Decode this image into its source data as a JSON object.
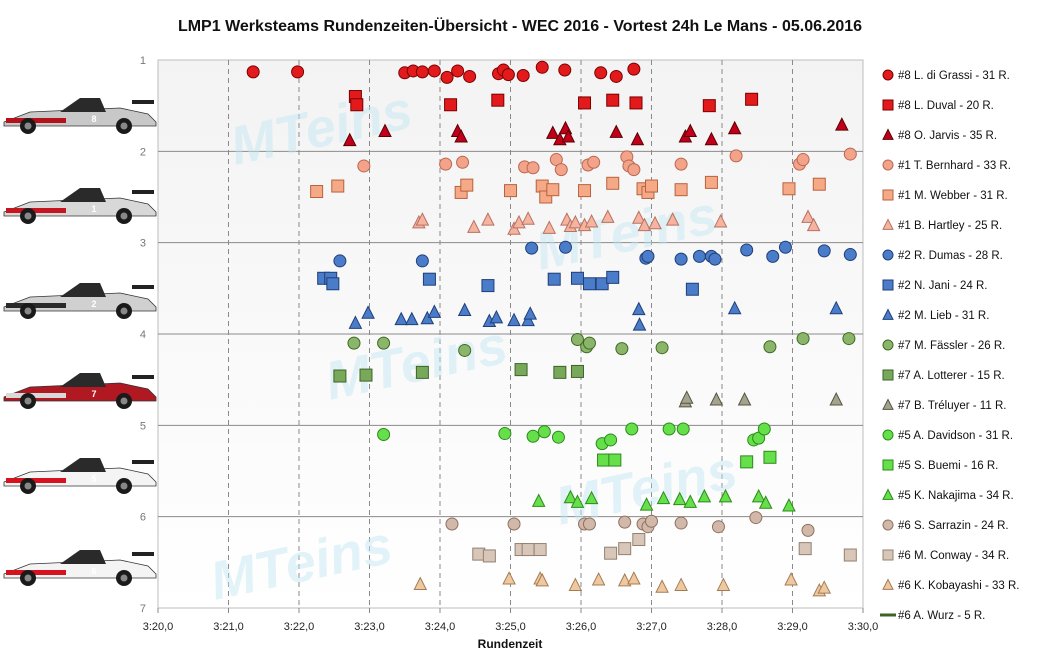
{
  "chart_data": {
    "type": "scatter",
    "title": "LMP1  Werksteams  Rundenzeiten-Übersicht  - WEC 2016  - Vortest 24h  Le Mans  - 05.06.2016",
    "xlabel": "Rundenzeit",
    "ylabel": "",
    "x_ticks": [
      "3:20,0",
      "3:21,0",
      "3:22,0",
      "3:23,0",
      "3:24,0",
      "3:25,0",
      "3:26,0",
      "3:27,0",
      "3:28,0",
      "3:29,0",
      "3:30,0"
    ],
    "xlim": [
      200,
      210
    ],
    "y_ticks": [
      "1",
      "2",
      "3",
      "4",
      "5",
      "6",
      "7"
    ],
    "ylim": [
      1,
      7
    ],
    "y_inverted": true,
    "grid": true,
    "legend_position": "right",
    "watermark": "MTeins",
    "series": [
      {
        "name": "#8 L. di Grassi - 31 R.",
        "marker": "circle",
        "color": "#e31a1c",
        "stroke": "#7a0000",
        "y": 1.13,
        "x": [
          201.35,
          201.98,
          203.5,
          203.62,
          203.75,
          203.92,
          204.1,
          204.25,
          204.42,
          204.83,
          204.9,
          204.97,
          205.18,
          205.45,
          205.77,
          206.28,
          206.5,
          206.75
        ],
        "yoff": [
          0,
          0,
          0.01,
          -0.01,
          0,
          -0.01,
          0.06,
          -0.01,
          0.05,
          0.02,
          -0.02,
          0.03,
          0.04,
          -0.05,
          -0.02,
          0.01,
          0.05,
          -0.03
        ]
      },
      {
        "name": "#8 L. Duval - 20 R.",
        "marker": "square",
        "color": "#e31a1c",
        "stroke": "#7a0000",
        "y": 1.42,
        "x": [
          202.8,
          202.82,
          204.15,
          204.82,
          206.05,
          206.45,
          206.78,
          207.82,
          208.42
        ],
        "yoff": [
          -0.02,
          0.07,
          0.07,
          0.02,
          0.05,
          0.02,
          0.05,
          0.08,
          0.01
        ]
      },
      {
        "name": "#8 O. Jarvis - 35 R.",
        "marker": "triangle",
        "color": "#c0001b",
        "stroke": "#5c0000",
        "y": 1.8,
        "x": [
          202.72,
          203.22,
          204.25,
          204.3,
          205.6,
          205.7,
          205.78,
          205.82,
          206.5,
          206.8,
          207.48,
          207.55,
          207.85,
          208.18,
          209.7
        ],
        "yoff": [
          0.08,
          -0.02,
          -0.02,
          0.04,
          0.0,
          0.07,
          -0.05,
          0.04,
          -0.01,
          0.07,
          0.04,
          -0.02,
          0.07,
          -0.05,
          -0.09
        ]
      },
      {
        "name": "#1 T. Bernhard - 33 R.",
        "marker": "circle",
        "color": "#f2a38a",
        "stroke": "#b9684f",
        "y": 2.14,
        "x": [
          202.92,
          204.08,
          204.32,
          205.2,
          205.32,
          205.65,
          205.72,
          206.1,
          206.18,
          206.65,
          206.68,
          206.75,
          207.42,
          208.2,
          209.1,
          209.15,
          209.82
        ],
        "yoff": [
          0.02,
          0.0,
          -0.02,
          0.03,
          0.04,
          -0.05,
          0.06,
          0.01,
          -0.02,
          -0.08,
          0.02,
          0.06,
          0.0,
          -0.09,
          0.0,
          -0.05,
          -0.11
        ]
      },
      {
        "name": "#1 M. Webber - 31 R.",
        "marker": "square",
        "color": "#f5a986",
        "stroke": "#b8633d",
        "y": 2.4,
        "x": [
          202.25,
          202.55,
          204.3,
          204.38,
          205.0,
          205.45,
          205.5,
          205.6,
          206.05,
          206.45,
          206.88,
          206.95,
          207.0,
          207.42,
          207.85,
          208.95,
          209.38
        ],
        "yoff": [
          0.04,
          -0.02,
          0.05,
          -0.03,
          0.03,
          -0.02,
          0.1,
          0.02,
          0.03,
          -0.05,
          0.01,
          0.05,
          -0.02,
          0.02,
          -0.06,
          0.01,
          -0.04
        ]
      },
      {
        "name": "#1 B. Hartley - 25 R.",
        "marker": "triangle",
        "color": "#f5b3a0",
        "stroke": "#b77262",
        "y": 2.78,
        "x": [
          203.7,
          203.75,
          204.48,
          204.68,
          205.05,
          205.12,
          205.25,
          205.55,
          205.8,
          205.85,
          205.92,
          206.05,
          206.15,
          206.38,
          206.82,
          206.9,
          207.05,
          207.3,
          207.98,
          209.22,
          209.3
        ],
        "yoff": [
          0.0,
          -0.03,
          0.05,
          -0.03,
          0.07,
          0.0,
          -0.04,
          0.06,
          -0.03,
          0.04,
          0.0,
          0.03,
          -0.01,
          -0.06,
          -0.05,
          0.03,
          0.01,
          -0.03,
          -0.01,
          -0.06,
          0.03
        ]
      },
      {
        "name": "#2 R. Dumas - 28 R.",
        "marker": "circle",
        "color": "#4a7cc9",
        "stroke": "#1f3f78",
        "y": 3.12,
        "x": [
          202.58,
          203.75,
          205.3,
          205.78,
          206.92,
          206.95,
          207.42,
          207.68,
          207.85,
          207.9,
          208.35,
          208.72,
          208.9,
          209.45,
          209.82
        ],
        "yoff": [
          0.08,
          0.08,
          -0.06,
          -0.07,
          0.05,
          0.03,
          0.06,
          0.03,
          0.03,
          0.06,
          -0.04,
          0.03,
          -0.07,
          -0.03,
          0.01
        ]
      },
      {
        "name": "#2 N. Jani - 24 R.",
        "marker": "square",
        "color": "#4a7cc9",
        "stroke": "#1f3f78",
        "y": 3.42,
        "x": [
          202.35,
          202.45,
          202.48,
          203.85,
          204.68,
          205.62,
          205.95,
          206.12,
          206.3,
          206.45,
          207.58
        ],
        "yoff": [
          -0.03,
          -0.03,
          0.03,
          -0.02,
          0.05,
          -0.02,
          -0.03,
          0.03,
          0.03,
          -0.04,
          0.09
        ]
      },
      {
        "name": "#2 M. Lieb - 31 R.",
        "marker": "triangle",
        "color": "#4a7cc9",
        "stroke": "#1f3f78",
        "y": 3.8,
        "x": [
          202.8,
          202.98,
          203.45,
          203.6,
          203.82,
          203.92,
          204.35,
          204.7,
          204.8,
          205.05,
          205.25,
          205.28,
          206.82,
          206.83,
          208.18,
          209.62
        ],
        "yoff": [
          0.08,
          -0.03,
          0.04,
          0.04,
          0.03,
          -0.04,
          -0.06,
          0.06,
          0.02,
          0.05,
          0.05,
          -0.02,
          -0.07,
          0.1,
          -0.08,
          -0.08
        ]
      },
      {
        "name": "#7 M. Fässler - 26 R.",
        "marker": "circle",
        "color": "#8bb56a",
        "stroke": "#3f6a22",
        "y": 4.1,
        "x": [
          202.78,
          203.2,
          204.35,
          205.95,
          206.08,
          206.12,
          206.58,
          207.15,
          208.68,
          209.15,
          209.8
        ],
        "yoff": [
          0.0,
          0.0,
          0.08,
          -0.04,
          0.04,
          0.0,
          0.06,
          0.05,
          0.04,
          -0.05,
          -0.05
        ]
      },
      {
        "name": "#7 A. Lotterer - 15 R.",
        "marker": "square",
        "color": "#78a95b",
        "stroke": "#3e6328",
        "y": 4.42,
        "x": [
          202.58,
          202.95,
          203.75,
          205.15,
          205.7,
          205.95
        ],
        "yoff": [
          0.04,
          0.03,
          0.0,
          -0.03,
          0.0,
          -0.01
        ]
      },
      {
        "name": "#7 B. Tréluyer - 11 R.",
        "marker": "triangle",
        "color": "#a4a48e",
        "stroke": "#555542",
        "y": 4.72,
        "x": [
          207.48,
          207.5,
          207.92,
          208.32,
          209.62
        ],
        "yoff": [
          0.02,
          -0.02,
          0.0,
          0.0,
          0.0
        ]
      },
      {
        "name": "#5 A. Davidson - 31 R.",
        "marker": "circle",
        "color": "#66e04a",
        "stroke": "#2b8a1a",
        "y": 5.12,
        "x": [
          203.2,
          204.92,
          205.32,
          205.48,
          205.68,
          206.3,
          206.42,
          206.72,
          207.25,
          207.45,
          208.45,
          208.52,
          208.6
        ],
        "yoff": [
          -0.02,
          -0.03,
          0.0,
          -0.05,
          0.01,
          0.08,
          0.04,
          -0.08,
          -0.08,
          -0.08,
          0.04,
          0.02,
          -0.08
        ]
      },
      {
        "name": "#5 S. Buemi - 16 R.",
        "marker": "square",
        "color": "#66e04a",
        "stroke": "#2b8a1a",
        "y": 5.38,
        "x": [
          206.32,
          206.48,
          208.35,
          208.68
        ],
        "yoff": [
          -0.0,
          -0.0,
          0.02,
          -0.03
        ]
      },
      {
        "name": "#5 K. Nakajima - 34 R.",
        "marker": "triangle",
        "color": "#66e04a",
        "stroke": "#2b8a1a",
        "y": 5.83,
        "x": [
          205.4,
          205.85,
          205.95,
          206.15,
          206.93,
          207.17,
          207.4,
          207.55,
          207.75,
          208.05,
          208.52,
          208.62,
          208.95
        ],
        "yoff": [
          0.0,
          -0.04,
          0.01,
          -0.03,
          0.04,
          -0.03,
          -0.02,
          0.01,
          -0.05,
          -0.05,
          -0.05,
          0.02,
          0.05
        ]
      },
      {
        "name": "#6 S. Sarrazin - 24 R.",
        "marker": "circle",
        "color": "#d2b8a8",
        "stroke": "#8e7060",
        "y": 6.08,
        "x": [
          204.17,
          205.05,
          206.05,
          206.12,
          206.62,
          206.88,
          206.95,
          207.0,
          207.42,
          207.95,
          208.48,
          209.22
        ],
        "yoff": [
          0.0,
          0.0,
          0.0,
          0.0,
          -0.02,
          0.0,
          0.03,
          -0.03,
          -0.01,
          0.03,
          -0.07,
          0.07
        ]
      },
      {
        "name": "#6 M. Conway - 34 R.",
        "marker": "square",
        "color": "#d8c6b8",
        "stroke": "#938070",
        "y": 6.43,
        "x": [
          204.55,
          204.7,
          205.15,
          205.25,
          205.42,
          206.42,
          206.62,
          206.82,
          209.18,
          209.82
        ],
        "yoff": [
          -0.02,
          0.0,
          -0.07,
          -0.07,
          -0.07,
          -0.03,
          -0.08,
          -0.18,
          -0.08,
          -0.01
        ]
      },
      {
        "name": "#6 K. Kobayashi - 33 R.",
        "marker": "triangle",
        "color": "#f0c8a0",
        "stroke": "#a27c55",
        "y": 6.7,
        "x": [
          203.72,
          204.98,
          205.42,
          205.45,
          205.92,
          206.25,
          206.62,
          206.75,
          207.15,
          207.42,
          208.02,
          208.98,
          209.38,
          209.45
        ],
        "yoff": [
          0.04,
          -0.02,
          -0.02,
          0.0,
          0.05,
          -0.01,
          0.0,
          -0.02,
          0.07,
          0.05,
          0.05,
          -0.01,
          0.11,
          0.08
        ]
      },
      {
        "name": "#6 A. Wurz - 5 R.",
        "marker": "square",
        "color": "#78a95b",
        "stroke": "#3e6328",
        "y": 7.0,
        "x": [],
        "yoff": []
      }
    ]
  },
  "cars": [
    {
      "name": "car-8",
      "body": "#c8c8c8",
      "accent": "#b3121b",
      "number": "8"
    },
    {
      "name": "car-1",
      "body": "#d8d8d8",
      "accent": "#c51521",
      "number": "1"
    },
    {
      "name": "car-2",
      "body": "#d0d0d0",
      "accent": "#2a2a2a",
      "number": "2"
    },
    {
      "name": "car-7",
      "body": "#b01822",
      "accent": "#d9d9d9",
      "number": "7"
    },
    {
      "name": "car-5",
      "body": "#f4f4f4",
      "accent": "#d6121f",
      "number": "5"
    },
    {
      "name": "car-6",
      "body": "#f4f4f4",
      "accent": "#d6121f",
      "number": "6"
    }
  ]
}
